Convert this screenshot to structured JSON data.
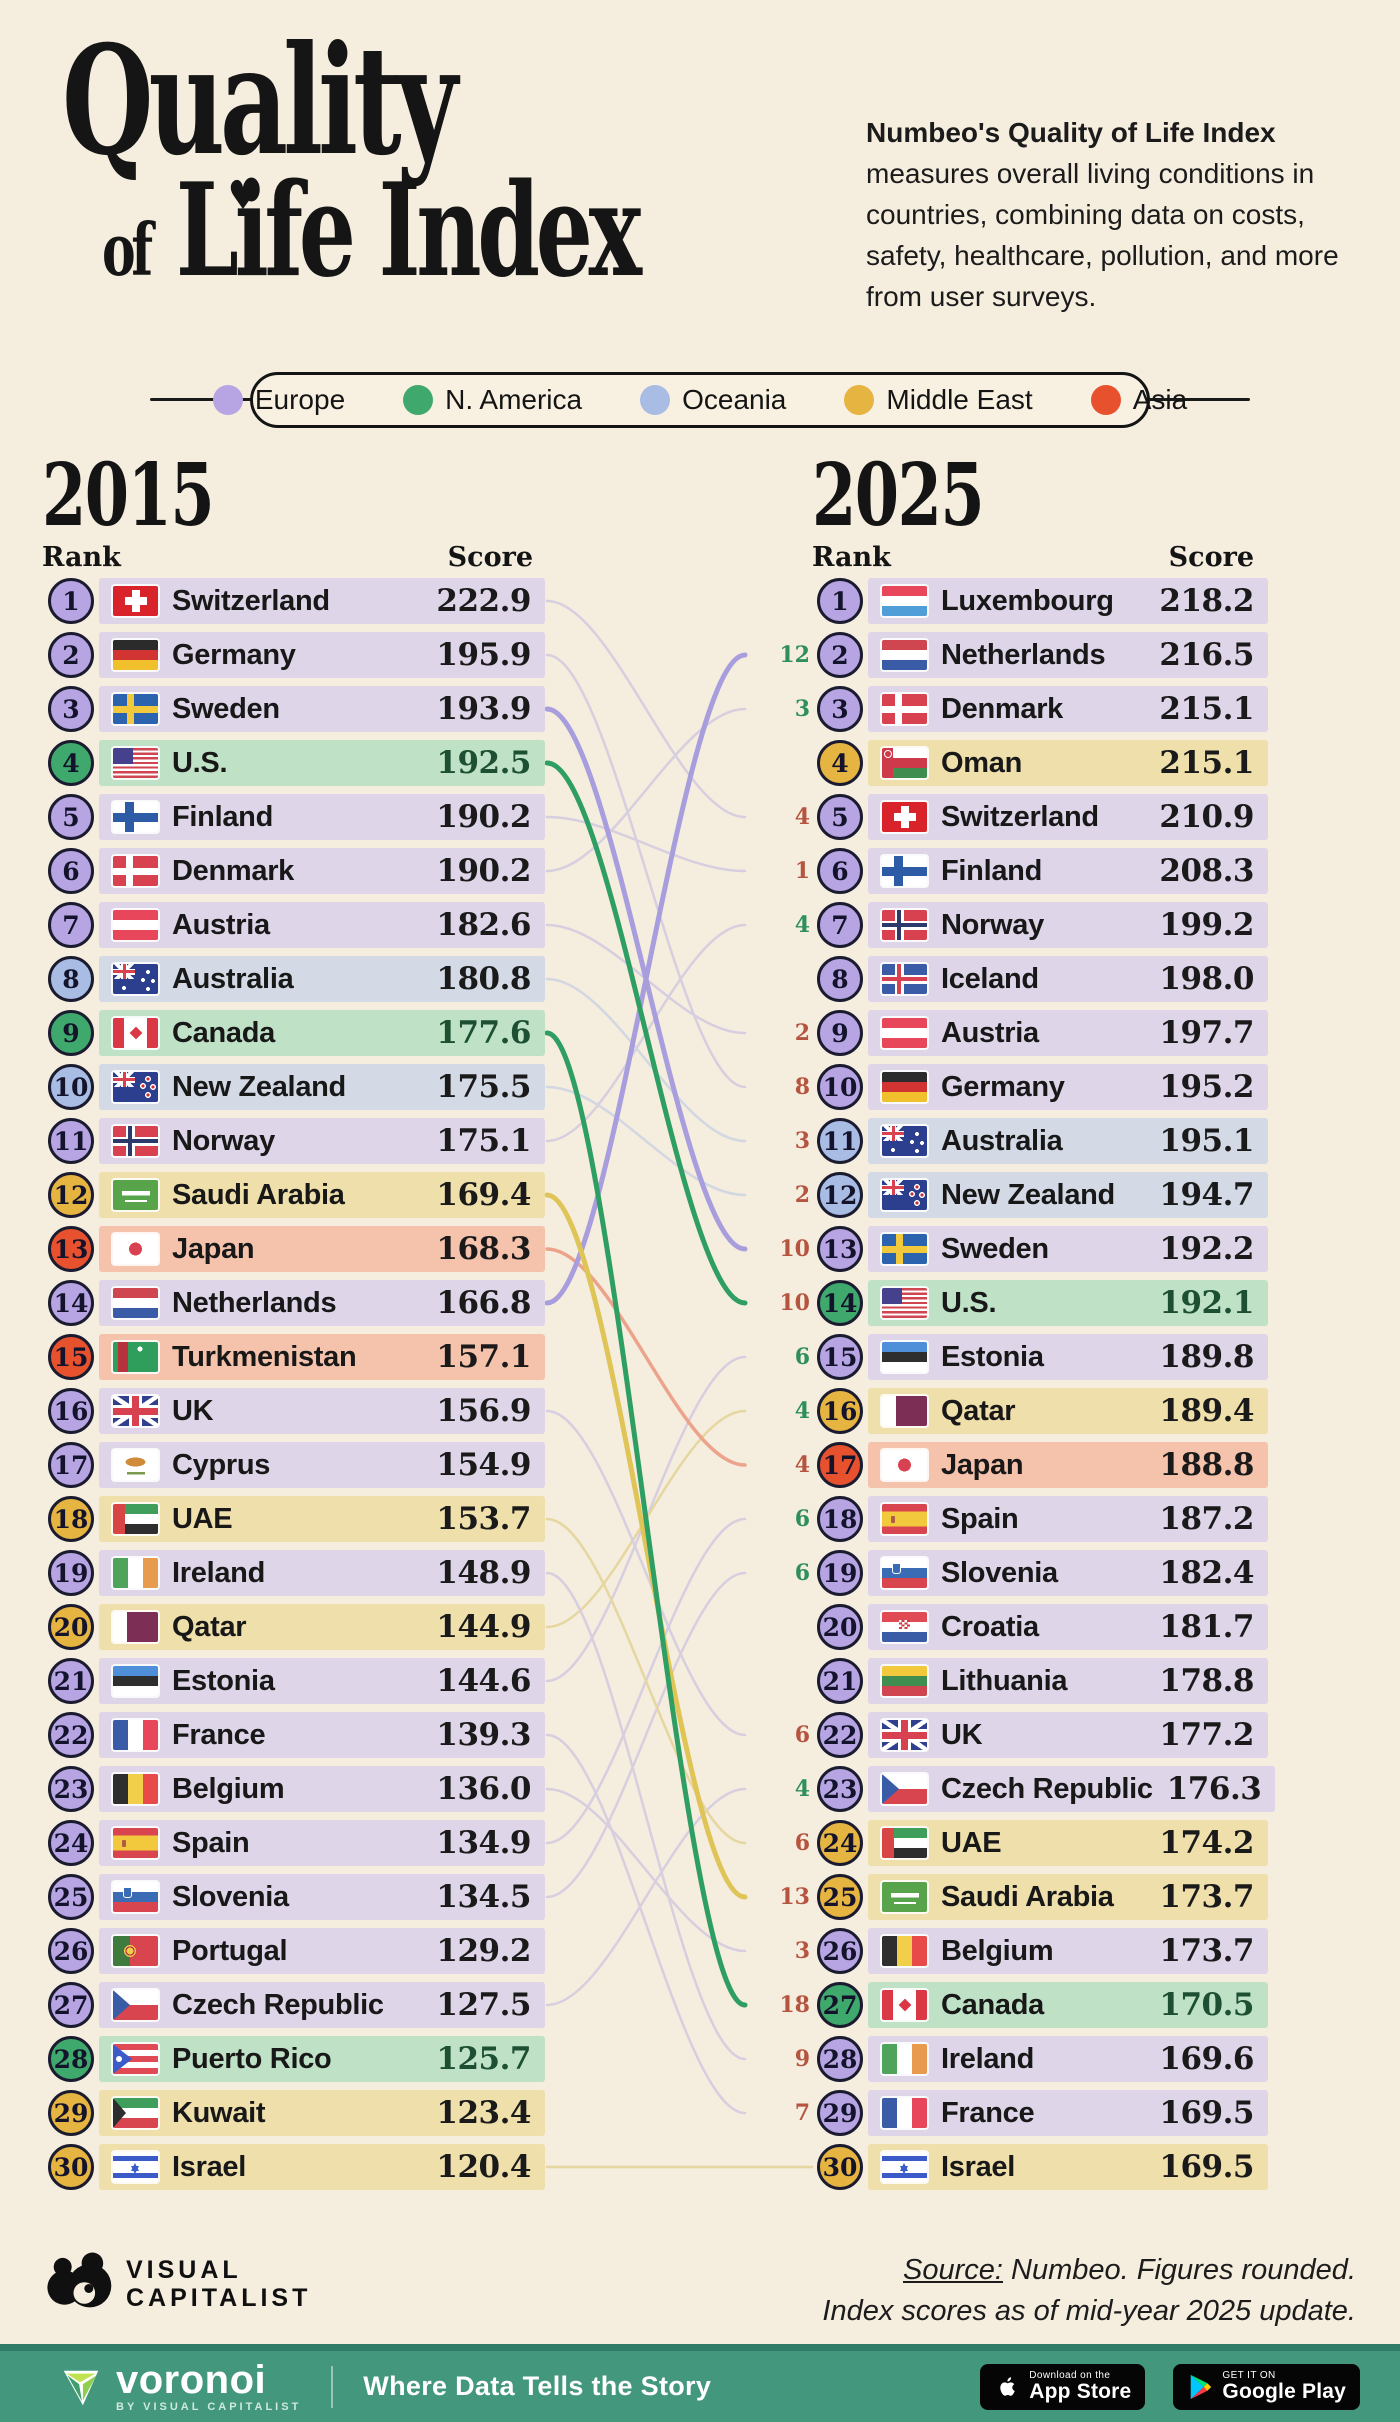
{
  "header": {
    "title_line1": "Quality",
    "title_of": "of",
    "title_line2": "Life Index",
    "heart": "♥",
    "description_bold": "Numbeo's Quality of Life Index",
    "description_rest": " measures overall living conditions in countries, combining data on costs, safety, healthcare, pollution, and more from user surveys."
  },
  "legend": {
    "items": [
      {
        "label": "Europe",
        "color": "#b7a5e3"
      },
      {
        "label": "N. America",
        "color": "#3fa86c"
      },
      {
        "label": "Oceania",
        "color": "#a9bce3"
      },
      {
        "label": "Middle East",
        "color": "#e6b441"
      },
      {
        "label": "Asia",
        "color": "#e8512e"
      }
    ]
  },
  "chart_data": {
    "type": "table",
    "title": "Quality of Life Index",
    "regions": {
      "Europe": {
        "bar": "#ded5e9",
        "circle": "#b7a5e3",
        "line": "#d7cfdf",
        "line_bold": "#a89ddd"
      },
      "N. America": {
        "bar": "#bfe2c6",
        "circle": "#3fa86c",
        "line": "#c3dcca",
        "line_bold": "#2f9e63"
      },
      "Oceania": {
        "bar": "#d3dae6",
        "circle": "#a9bce3",
        "line": "#d2d7e2",
        "line_bold": "#a9bce3"
      },
      "Middle East": {
        "bar": "#eedfab",
        "circle": "#e6b441",
        "line": "#e6d69f",
        "line_bold": "#dfc457"
      },
      "Asia": {
        "bar": "#f5c2ac",
        "circle": "#e8512e",
        "line": "#eec6b2",
        "line_bold": "#eca38b"
      }
    },
    "change_colors": {
      "up": "#2e8f5b",
      "down": "#b5543f"
    },
    "col2015": {
      "year": "2015",
      "rank_label": "Rank",
      "score_label": "Score",
      "rows": [
        {
          "rank": 1,
          "country": "Switzerland",
          "flag": "switzerland",
          "region": "Europe",
          "score": "222.9"
        },
        {
          "rank": 2,
          "country": "Germany",
          "flag": "germany",
          "region": "Europe",
          "score": "195.9"
        },
        {
          "rank": 3,
          "country": "Sweden",
          "flag": "sweden",
          "region": "Europe",
          "score": "193.9",
          "line": "bold"
        },
        {
          "rank": 4,
          "country": "U.S.",
          "flag": "us",
          "region": "N. America",
          "score": "192.5",
          "line": "bold"
        },
        {
          "rank": 5,
          "country": "Finland",
          "flag": "finland",
          "region": "Europe",
          "score": "190.2"
        },
        {
          "rank": 6,
          "country": "Denmark",
          "flag": "denmark",
          "region": "Europe",
          "score": "190.2"
        },
        {
          "rank": 7,
          "country": "Austria",
          "flag": "austria",
          "region": "Europe",
          "score": "182.6"
        },
        {
          "rank": 8,
          "country": "Australia",
          "flag": "australia",
          "region": "Oceania",
          "score": "180.8"
        },
        {
          "rank": 9,
          "country": "Canada",
          "flag": "canada",
          "region": "N. America",
          "score": "177.6",
          "line": "bold"
        },
        {
          "rank": 10,
          "country": "New Zealand",
          "flag": "new-zealand",
          "region": "Oceania",
          "score": "175.5"
        },
        {
          "rank": 11,
          "country": "Norway",
          "flag": "norway",
          "region": "Europe",
          "score": "175.1"
        },
        {
          "rank": 12,
          "country": "Saudi Arabia",
          "flag": "saudi-arabia",
          "region": "Middle East",
          "score": "169.4",
          "line": "bold"
        },
        {
          "rank": 13,
          "country": "Japan",
          "flag": "japan",
          "region": "Asia",
          "score": "168.3",
          "line": "medium"
        },
        {
          "rank": 14,
          "country": "Netherlands",
          "flag": "netherlands",
          "region": "Europe",
          "score": "166.8",
          "line": "bold"
        },
        {
          "rank": 15,
          "country": "Turkmenistan",
          "flag": "turkmenistan",
          "region": "Asia",
          "score": "157.1"
        },
        {
          "rank": 16,
          "country": "UK",
          "flag": "uk",
          "region": "Europe",
          "score": "156.9"
        },
        {
          "rank": 17,
          "country": "Cyprus",
          "flag": "cyprus",
          "region": "Europe",
          "score": "154.9"
        },
        {
          "rank": 18,
          "country": "UAE",
          "flag": "uae",
          "region": "Middle East",
          "score": "153.7"
        },
        {
          "rank": 19,
          "country": "Ireland",
          "flag": "ireland",
          "region": "Europe",
          "score": "148.9"
        },
        {
          "rank": 20,
          "country": "Qatar",
          "flag": "qatar",
          "region": "Middle East",
          "score": "144.9"
        },
        {
          "rank": 21,
          "country": "Estonia",
          "flag": "estonia",
          "region": "Europe",
          "score": "144.6"
        },
        {
          "rank": 22,
          "country": "France",
          "flag": "france",
          "region": "Europe",
          "score": "139.3"
        },
        {
          "rank": 23,
          "country": "Belgium",
          "flag": "belgium",
          "region": "Europe",
          "score": "136.0"
        },
        {
          "rank": 24,
          "country": "Spain",
          "flag": "spain",
          "region": "Europe",
          "score": "134.9"
        },
        {
          "rank": 25,
          "country": "Slovenia",
          "flag": "slovenia",
          "region": "Europe",
          "score": "134.5"
        },
        {
          "rank": 26,
          "country": "Portugal",
          "flag": "portugal",
          "region": "Europe",
          "score": "129.2"
        },
        {
          "rank": 27,
          "country": "Czech Republic",
          "flag": "czech-republic",
          "region": "Europe",
          "score": "127.5"
        },
        {
          "rank": 28,
          "country": "Puerto Rico",
          "flag": "puerto-rico",
          "region": "N. America",
          "score": "125.7"
        },
        {
          "rank": 29,
          "country": "Kuwait",
          "flag": "kuwait",
          "region": "Middle East",
          "score": "123.4"
        },
        {
          "rank": 30,
          "country": "Israel",
          "flag": "israel",
          "region": "Middle East",
          "score": "120.4"
        }
      ]
    },
    "col2025": {
      "year": "2025",
      "rank_label": "Rank",
      "score_label": "Score",
      "rows": [
        {
          "rank": 1,
          "country": "Luxembourg",
          "flag": "luxembourg",
          "region": "Europe",
          "score": "218.2",
          "change": null
        },
        {
          "rank": 2,
          "country": "Netherlands",
          "flag": "netherlands",
          "region": "Europe",
          "score": "216.5",
          "change": "+12"
        },
        {
          "rank": 3,
          "country": "Denmark",
          "flag": "denmark",
          "region": "Europe",
          "score": "215.1",
          "change": "+3"
        },
        {
          "rank": 4,
          "country": "Oman",
          "flag": "oman",
          "region": "Middle East",
          "score": "215.1",
          "change": null
        },
        {
          "rank": 5,
          "country": "Switzerland",
          "flag": "switzerland",
          "region": "Europe",
          "score": "210.9",
          "change": "-4"
        },
        {
          "rank": 6,
          "country": "Finland",
          "flag": "finland",
          "region": "Europe",
          "score": "208.3",
          "change": "-1"
        },
        {
          "rank": 7,
          "country": "Norway",
          "flag": "norway",
          "region": "Europe",
          "score": "199.2",
          "change": "+4"
        },
        {
          "rank": 8,
          "country": "Iceland",
          "flag": "iceland",
          "region": "Europe",
          "score": "198.0",
          "change": null
        },
        {
          "rank": 9,
          "country": "Austria",
          "flag": "austria",
          "region": "Europe",
          "score": "197.7",
          "change": "-2"
        },
        {
          "rank": 10,
          "country": "Germany",
          "flag": "germany",
          "region": "Europe",
          "score": "195.2",
          "change": "-8"
        },
        {
          "rank": 11,
          "country": "Australia",
          "flag": "australia",
          "region": "Oceania",
          "score": "195.1",
          "change": "-3"
        },
        {
          "rank": 12,
          "country": "New Zealand",
          "flag": "new-zealand",
          "region": "Oceania",
          "score": "194.7",
          "change": "-2"
        },
        {
          "rank": 13,
          "country": "Sweden",
          "flag": "sweden",
          "region": "Europe",
          "score": "192.2",
          "change": "-10"
        },
        {
          "rank": 14,
          "country": "U.S.",
          "flag": "us",
          "region": "N. America",
          "score": "192.1",
          "change": "-10"
        },
        {
          "rank": 15,
          "country": "Estonia",
          "flag": "estonia",
          "region": "Europe",
          "score": "189.8",
          "change": "+6"
        },
        {
          "rank": 16,
          "country": "Qatar",
          "flag": "qatar",
          "region": "Middle East",
          "score": "189.4",
          "change": "+4"
        },
        {
          "rank": 17,
          "country": "Japan",
          "flag": "japan",
          "region": "Asia",
          "score": "188.8",
          "change": "-4"
        },
        {
          "rank": 18,
          "country": "Spain",
          "flag": "spain",
          "region": "Europe",
          "score": "187.2",
          "change": "+6"
        },
        {
          "rank": 19,
          "country": "Slovenia",
          "flag": "slovenia",
          "region": "Europe",
          "score": "182.4",
          "change": "+6"
        },
        {
          "rank": 20,
          "country": "Croatia",
          "flag": "croatia",
          "region": "Europe",
          "score": "181.7",
          "change": null
        },
        {
          "rank": 21,
          "country": "Lithuania",
          "flag": "lithuania",
          "region": "Europe",
          "score": "178.8",
          "change": null
        },
        {
          "rank": 22,
          "country": "UK",
          "flag": "uk",
          "region": "Europe",
          "score": "177.2",
          "change": "-6"
        },
        {
          "rank": 23,
          "country": "Czech Republic",
          "flag": "czech-republic",
          "region": "Europe",
          "score": "176.3",
          "change": "+4"
        },
        {
          "rank": 24,
          "country": "UAE",
          "flag": "uae",
          "region": "Middle East",
          "score": "174.2",
          "change": "-6"
        },
        {
          "rank": 25,
          "country": "Saudi Arabia",
          "flag": "saudi-arabia",
          "region": "Middle East",
          "score": "173.7",
          "change": "-13"
        },
        {
          "rank": 26,
          "country": "Belgium",
          "flag": "belgium",
          "region": "Europe",
          "score": "173.7",
          "change": "-3"
        },
        {
          "rank": 27,
          "country": "Canada",
          "flag": "canada",
          "region": "N. America",
          "score": "170.5",
          "change": "-18"
        },
        {
          "rank": 28,
          "country": "Ireland",
          "flag": "ireland",
          "region": "Europe",
          "score": "169.6",
          "change": "-9"
        },
        {
          "rank": 29,
          "country": "France",
          "flag": "france",
          "region": "Europe",
          "score": "169.5",
          "change": "-7"
        },
        {
          "rank": 30,
          "country": "Israel",
          "flag": "israel",
          "region": "Middle East",
          "score": "169.5",
          "change": null
        }
      ]
    }
  },
  "footer": {
    "brand_line1": "VISUAL",
    "brand_line2": "CAPITALIST",
    "source_prefix": "Source:",
    "source_rest": " Numbeo. Figures rounded.",
    "source_line2": "Index scores as of mid-year 2025 update."
  },
  "bottombar": {
    "brand": "voronoi",
    "brand_sub": "BY VISUAL CAPITALIST",
    "tagline": "Where Data Tells the Story",
    "appstore_line1": "Download on the",
    "appstore_line2": "App Store",
    "gplay_line1": "GET IT ON",
    "gplay_line2": "Google Play"
  }
}
